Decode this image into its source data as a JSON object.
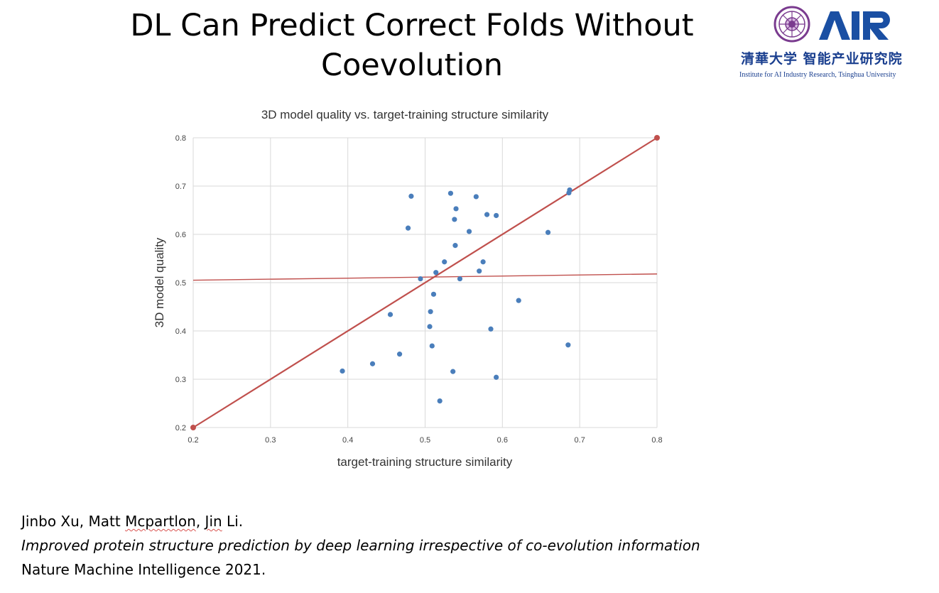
{
  "slide": {
    "title_line1": "DL Can Predict Correct Folds Without",
    "title_line2": "Coevolution"
  },
  "logo": {
    "brand": "AiR",
    "cn_text": "清華大学 智能产业研究院",
    "en_text": "Institute for AI Industry Research,  Tsinghua University",
    "brand_color": "#1a4fa3"
  },
  "chart_data": {
    "type": "scatter",
    "title": "3D model quality vs. target-training structure similarity",
    "xlabel": "target-training structure similarity",
    "ylabel": "3D model quality",
    "xlim": [
      0.2,
      0.8
    ],
    "ylim": [
      0.2,
      0.8
    ],
    "xticks": [
      "0.2",
      "0.3",
      "0.4",
      "0.5",
      "0.6",
      "0.7",
      "0.8"
    ],
    "yticks": [
      "0.2",
      "0.3",
      "0.4",
      "0.5",
      "0.6",
      "0.7",
      "0.8"
    ],
    "grid": true,
    "point_color": "#4a7ebb",
    "line_color": "#c0504d",
    "points": [
      {
        "x": 0.393,
        "y": 0.317
      },
      {
        "x": 0.432,
        "y": 0.332
      },
      {
        "x": 0.455,
        "y": 0.434
      },
      {
        "x": 0.467,
        "y": 0.352
      },
      {
        "x": 0.478,
        "y": 0.613
      },
      {
        "x": 0.482,
        "y": 0.679
      },
      {
        "x": 0.494,
        "y": 0.508
      },
      {
        "x": 0.506,
        "y": 0.409
      },
      {
        "x": 0.507,
        "y": 0.44
      },
      {
        "x": 0.509,
        "y": 0.369
      },
      {
        "x": 0.511,
        "y": 0.476
      },
      {
        "x": 0.514,
        "y": 0.521
      },
      {
        "x": 0.519,
        "y": 0.255
      },
      {
        "x": 0.525,
        "y": 0.543
      },
      {
        "x": 0.533,
        "y": 0.685
      },
      {
        "x": 0.536,
        "y": 0.316
      },
      {
        "x": 0.538,
        "y": 0.631
      },
      {
        "x": 0.539,
        "y": 0.577
      },
      {
        "x": 0.54,
        "y": 0.653
      },
      {
        "x": 0.545,
        "y": 0.508
      },
      {
        "x": 0.557,
        "y": 0.606
      },
      {
        "x": 0.566,
        "y": 0.678
      },
      {
        "x": 0.57,
        "y": 0.524
      },
      {
        "x": 0.575,
        "y": 0.543
      },
      {
        "x": 0.58,
        "y": 0.641
      },
      {
        "x": 0.585,
        "y": 0.404
      },
      {
        "x": 0.592,
        "y": 0.639
      },
      {
        "x": 0.592,
        "y": 0.304
      },
      {
        "x": 0.621,
        "y": 0.463
      },
      {
        "x": 0.659,
        "y": 0.604
      },
      {
        "x": 0.685,
        "y": 0.371
      },
      {
        "x": 0.686,
        "y": 0.686
      },
      {
        "x": 0.687,
        "y": 0.692
      }
    ],
    "lines": [
      {
        "name": "diagonal",
        "x": [
          0.2,
          0.8
        ],
        "y": [
          0.2,
          0.8
        ],
        "endpoint_markers": true
      },
      {
        "name": "trend",
        "x": [
          0.2,
          0.8
        ],
        "y": [
          0.505,
          0.518
        ],
        "endpoint_markers": false
      }
    ]
  },
  "citation": {
    "authors_prefix": "Jinbo Xu, Matt ",
    "authors_name2": "Mcpartlon",
    "authors_mid": ", ",
    "authors_name3": "Jin",
    "authors_suffix": " Li.",
    "paper_title": "Improved protein structure prediction by deep learning irrespective of co-evolution information",
    "journal": "Nature Machine Intelligence 2021."
  }
}
